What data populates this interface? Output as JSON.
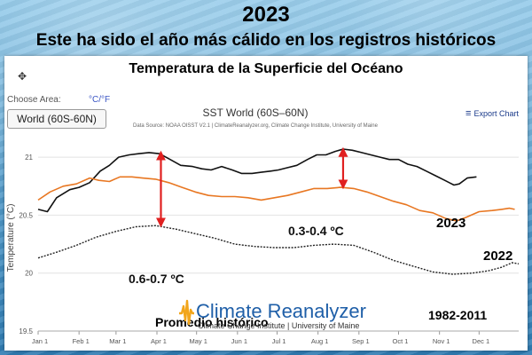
{
  "headline": {
    "year": "2023",
    "subtitle": "Este ha sido el año más cálido en los registros históricos"
  },
  "panel": {
    "title": "Temperatura de la Superficie del Océano",
    "choose_area_label": "Choose Area:",
    "units_toggle": "°C/°F",
    "area_value": "World (60S-60N)",
    "export_label": "Export Chart",
    "move_icon": "move-icon"
  },
  "chart_data": {
    "type": "line",
    "title": "SST World (60S–60N)",
    "subtitle": "Data Source: NOAA OISST V2.1 | ClimateReanalyzer.org, Climate Change Institute, University of Maine",
    "ylabel": "Temperature (°C)",
    "ylim": [
      19.5,
      21.2
    ],
    "yticks": [
      "19.5",
      "20",
      "20.5",
      "21"
    ],
    "xticks": [
      "Jan 1",
      "Feb 1",
      "Mar 1",
      "Apr 1",
      "May 1",
      "Jun 1",
      "Jul 1",
      "Aug 1",
      "Sep 1",
      "Oct 1",
      "Nov 1",
      "Dec 1"
    ],
    "x_unit": "day of year",
    "grid": true,
    "series": [
      {
        "name": "2023",
        "color": "#111111",
        "style": "solid",
        "points": [
          [
            1,
            20.55
          ],
          [
            8,
            20.53
          ],
          [
            15,
            20.65
          ],
          [
            25,
            20.72
          ],
          [
            32,
            20.74
          ],
          [
            40,
            20.78
          ],
          [
            48,
            20.88
          ],
          [
            55,
            20.93
          ],
          [
            62,
            21.0
          ],
          [
            70,
            21.02
          ],
          [
            77,
            21.03
          ],
          [
            85,
            21.04
          ],
          [
            93,
            21.03
          ],
          [
            101,
            20.98
          ],
          [
            109,
            20.93
          ],
          [
            118,
            20.92
          ],
          [
            125,
            20.9
          ],
          [
            132,
            20.89
          ],
          [
            140,
            20.92
          ],
          [
            148,
            20.89
          ],
          [
            155,
            20.86
          ],
          [
            163,
            20.86
          ],
          [
            170,
            20.87
          ],
          [
            177,
            20.88
          ],
          [
            183,
            20.89
          ],
          [
            190,
            20.91
          ],
          [
            197,
            20.93
          ],
          [
            205,
            20.98
          ],
          [
            212,
            21.02
          ],
          [
            219,
            21.02
          ],
          [
            226,
            21.05
          ],
          [
            232,
            21.07
          ],
          [
            239,
            21.06
          ],
          [
            246,
            21.04
          ],
          [
            253,
            21.02
          ],
          [
            260,
            21.0
          ],
          [
            267,
            20.98
          ],
          [
            274,
            20.98
          ],
          [
            281,
            20.94
          ],
          [
            288,
            20.92
          ],
          [
            295,
            20.88
          ],
          [
            302,
            20.84
          ],
          [
            309,
            20.8
          ],
          [
            316,
            20.76
          ],
          [
            320,
            20.77
          ],
          [
            326,
            20.82
          ],
          [
            333,
            20.83
          ]
        ]
      },
      {
        "name": "2022",
        "color": "#e87722",
        "style": "solid",
        "points": [
          [
            1,
            20.63
          ],
          [
            10,
            20.7
          ],
          [
            20,
            20.75
          ],
          [
            30,
            20.77
          ],
          [
            40,
            20.82
          ],
          [
            47,
            20.8
          ],
          [
            55,
            20.79
          ],
          [
            63,
            20.83
          ],
          [
            72,
            20.83
          ],
          [
            80,
            20.82
          ],
          [
            90,
            20.81
          ],
          [
            100,
            20.78
          ],
          [
            110,
            20.74
          ],
          [
            120,
            20.7
          ],
          [
            130,
            20.67
          ],
          [
            140,
            20.66
          ],
          [
            150,
            20.66
          ],
          [
            160,
            20.65
          ],
          [
            170,
            20.63
          ],
          [
            180,
            20.65
          ],
          [
            190,
            20.67
          ],
          [
            200,
            20.7
          ],
          [
            210,
            20.73
          ],
          [
            220,
            20.73
          ],
          [
            230,
            20.74
          ],
          [
            240,
            20.73
          ],
          [
            250,
            20.7
          ],
          [
            260,
            20.66
          ],
          [
            270,
            20.62
          ],
          [
            280,
            20.59
          ],
          [
            290,
            20.54
          ],
          [
            300,
            20.52
          ],
          [
            310,
            20.47
          ],
          [
            318,
            20.45
          ],
          [
            325,
            20.48
          ],
          [
            335,
            20.53
          ],
          [
            345,
            20.54
          ],
          [
            352,
            20.55
          ],
          [
            358,
            20.56
          ],
          [
            362,
            20.55
          ]
        ]
      },
      {
        "name": "Promedio histórico 1982-2011",
        "color": "#222222",
        "style": "dashed",
        "points": [
          [
            1,
            20.13
          ],
          [
            15,
            20.18
          ],
          [
            30,
            20.24
          ],
          [
            45,
            20.31
          ],
          [
            60,
            20.36
          ],
          [
            75,
            20.4
          ],
          [
            90,
            20.41
          ],
          [
            105,
            20.38
          ],
          [
            120,
            20.34
          ],
          [
            135,
            20.3
          ],
          [
            150,
            20.25
          ],
          [
            165,
            20.23
          ],
          [
            180,
            20.22
          ],
          [
            195,
            20.22
          ],
          [
            210,
            20.24
          ],
          [
            225,
            20.25
          ],
          [
            240,
            20.24
          ],
          [
            255,
            20.18
          ],
          [
            270,
            20.11
          ],
          [
            285,
            20.06
          ],
          [
            300,
            20.01
          ],
          [
            315,
            19.99
          ],
          [
            330,
            20.0
          ],
          [
            342,
            20.02
          ],
          [
            352,
            20.05
          ],
          [
            360,
            20.09
          ],
          [
            365,
            20.08
          ]
        ]
      }
    ],
    "annotations": [
      {
        "text": "0.6-0.7 ºC",
        "x_day": 94,
        "y_from": 20.41,
        "y_to": 21.04,
        "color": "#e02020"
      },
      {
        "text": "0.3-0.4 ºC",
        "x_day": 232,
        "y_from": 20.74,
        "y_to": 21.07,
        "color": "#e02020"
      }
    ],
    "series_labels": [
      {
        "text": "2023",
        "bold": true
      },
      {
        "text": "2022",
        "bold": true
      },
      {
        "text": "1982-2011",
        "bold": true
      },
      {
        "text": "Promedio histórico",
        "bold": true
      }
    ],
    "logo": {
      "title": "Climate Reanalyzer",
      "subtitle": "Climate Change Institute | University of Maine",
      "title_color": "#1f5fa8"
    }
  }
}
